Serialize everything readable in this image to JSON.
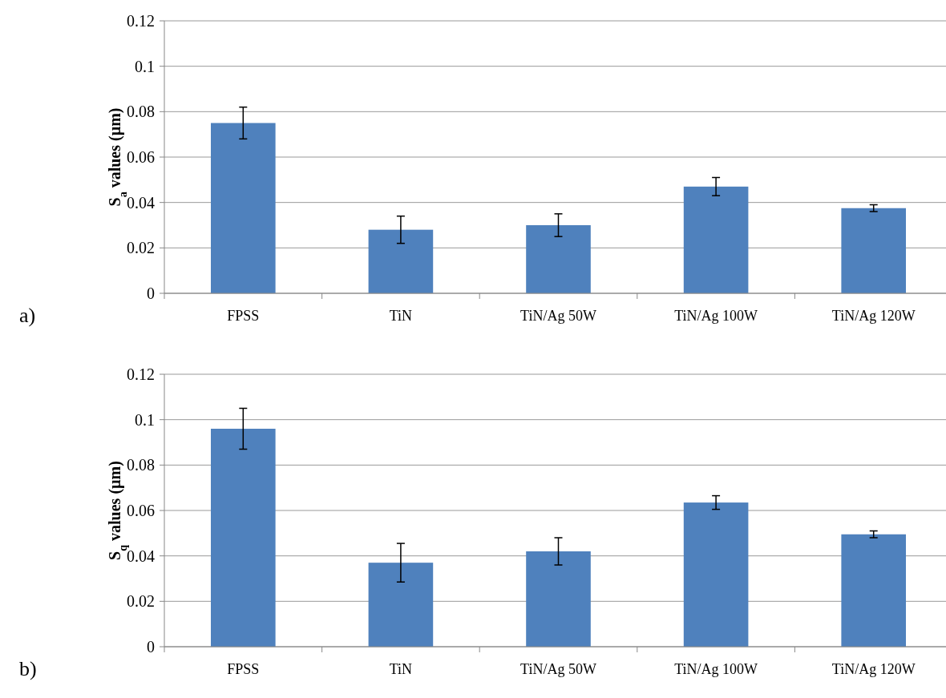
{
  "chart_data": [
    {
      "type": "bar",
      "ylabel": "S$_{a}$ values (µm)",
      "categories": [
        "FPSS",
        "TiN",
        "TiN/Ag 50W",
        "TiN/Ag 100W",
        "TiN/Ag 120W"
      ],
      "values": [
        0.075,
        0.028,
        0.03,
        0.047,
        0.0375
      ],
      "errors": [
        0.007,
        0.006,
        0.005,
        0.004,
        0.0015
      ],
      "color": "#4f81bd",
      "ylim": [
        0,
        0.12
      ],
      "yticks": [
        0,
        0.02,
        0.04,
        0.06,
        0.08,
        0.1,
        0.12
      ],
      "grid": "y",
      "annotations": [
        "a)"
      ]
    },
    {
      "type": "bar",
      "ylabel": "S$_{q}$ values (µm)",
      "categories": [
        "FPSS",
        "TiN",
        "TiN/Ag 50W",
        "TiN/Ag 100W",
        "TiN/Ag 120W"
      ],
      "values": [
        0.096,
        0.037,
        0.042,
        0.0635,
        0.0495
      ],
      "errors": [
        0.009,
        0.0085,
        0.006,
        0.003,
        0.0015
      ],
      "color": "#4f81bd",
      "ylim": [
        0,
        0.12
      ],
      "yticks": [
        0,
        0.02,
        0.04,
        0.06,
        0.08,
        0.1,
        0.12
      ],
      "grid": "y",
      "annotations": [
        "b)"
      ]
    }
  ]
}
